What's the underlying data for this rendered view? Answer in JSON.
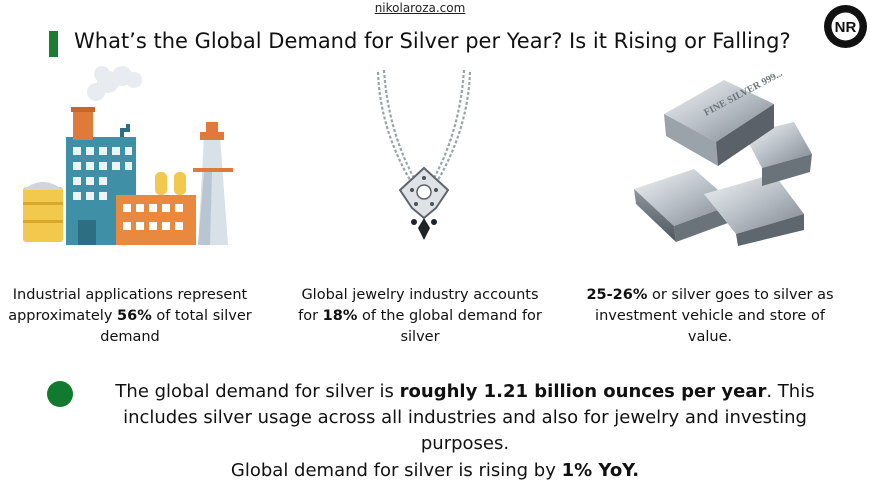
{
  "header": {
    "site": "nikolaroza.com",
    "title": "What’s the Global Demand for Silver per Year? Is it Rising or Falling?",
    "logo_text": "NR",
    "accent_color": "#1e7b34"
  },
  "illustrations": [
    {
      "icon": "factory-icon"
    },
    {
      "icon": "necklace-icon"
    },
    {
      "icon": "silver-bars-icon",
      "bar_text": "FINE SILVER 999.9"
    }
  ],
  "captions": [
    {
      "pre": "Industrial applications represent approximately ",
      "bold": "56%",
      "post": " of total silver demand"
    },
    {
      "pre": "Global jewelry industry accounts for ",
      "bold": "18%",
      "post": " of the global demand for silver"
    },
    {
      "pre": "",
      "bold": "25-26%",
      "post": " or silver goes to silver as investment vehicle and store of value."
    }
  ],
  "summary": {
    "pre": "The global demand for silver is ",
    "bold": "roughly 1.21 billion ounces per year",
    "post": ". This includes silver usage across all industries and also for jewelry and investing purposes.",
    "bullet_color": "#127a2e"
  },
  "trend": {
    "pre": "Global demand for silver is rising by ",
    "bold": "1% YoY."
  }
}
